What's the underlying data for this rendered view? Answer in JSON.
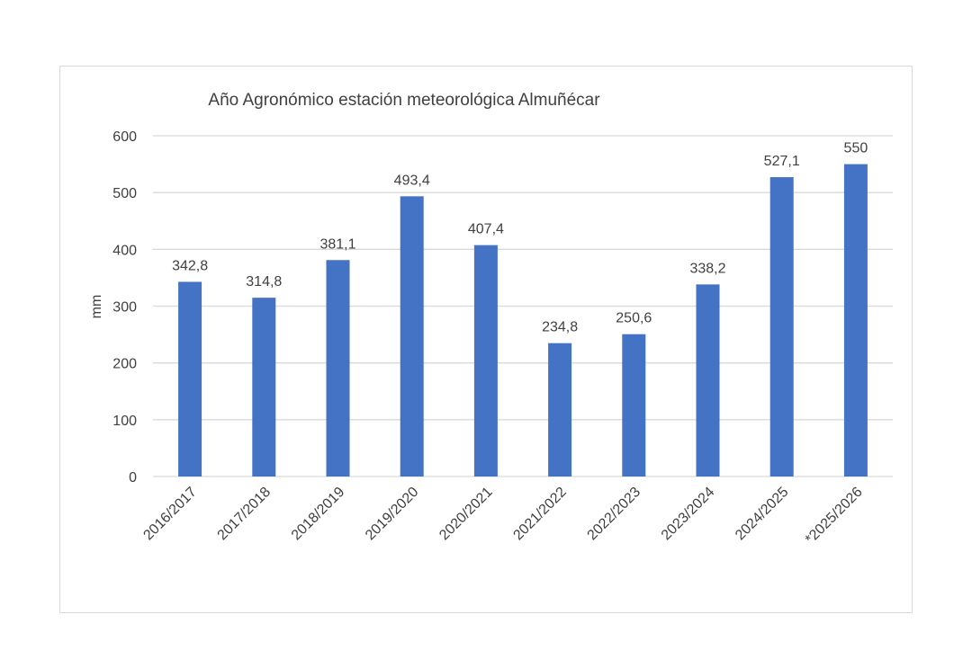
{
  "chart_data": {
    "type": "bar",
    "title": "Año Agronómico estación meteorológica Almuñécar",
    "xlabel": "",
    "ylabel": "mm",
    "ylim": [
      0,
      600
    ],
    "yticks": [
      "0",
      "100",
      "200",
      "300",
      "400",
      "500",
      "600"
    ],
    "categories": [
      "2016/2017",
      "2017/2018",
      "2018/2019",
      "2019/2020",
      "2020/2021",
      "2021/2022",
      "2022/2023",
      "2023/2024",
      "2024/2025",
      "*2025/2026"
    ],
    "values": [
      342.8,
      314.8,
      381.1,
      493.4,
      407.4,
      234.8,
      250.6,
      338.2,
      527.1,
      550
    ],
    "data_labels": [
      "342,8",
      "314,8",
      "381,1",
      "493,4",
      "407,4",
      "234,8",
      "250,6",
      "338,2",
      "527,1",
      "550"
    ],
    "grid": true,
    "legend": "none",
    "colors": {
      "bar": "#4472c4",
      "grid": "#d9d9d9",
      "text": "#404040"
    }
  }
}
